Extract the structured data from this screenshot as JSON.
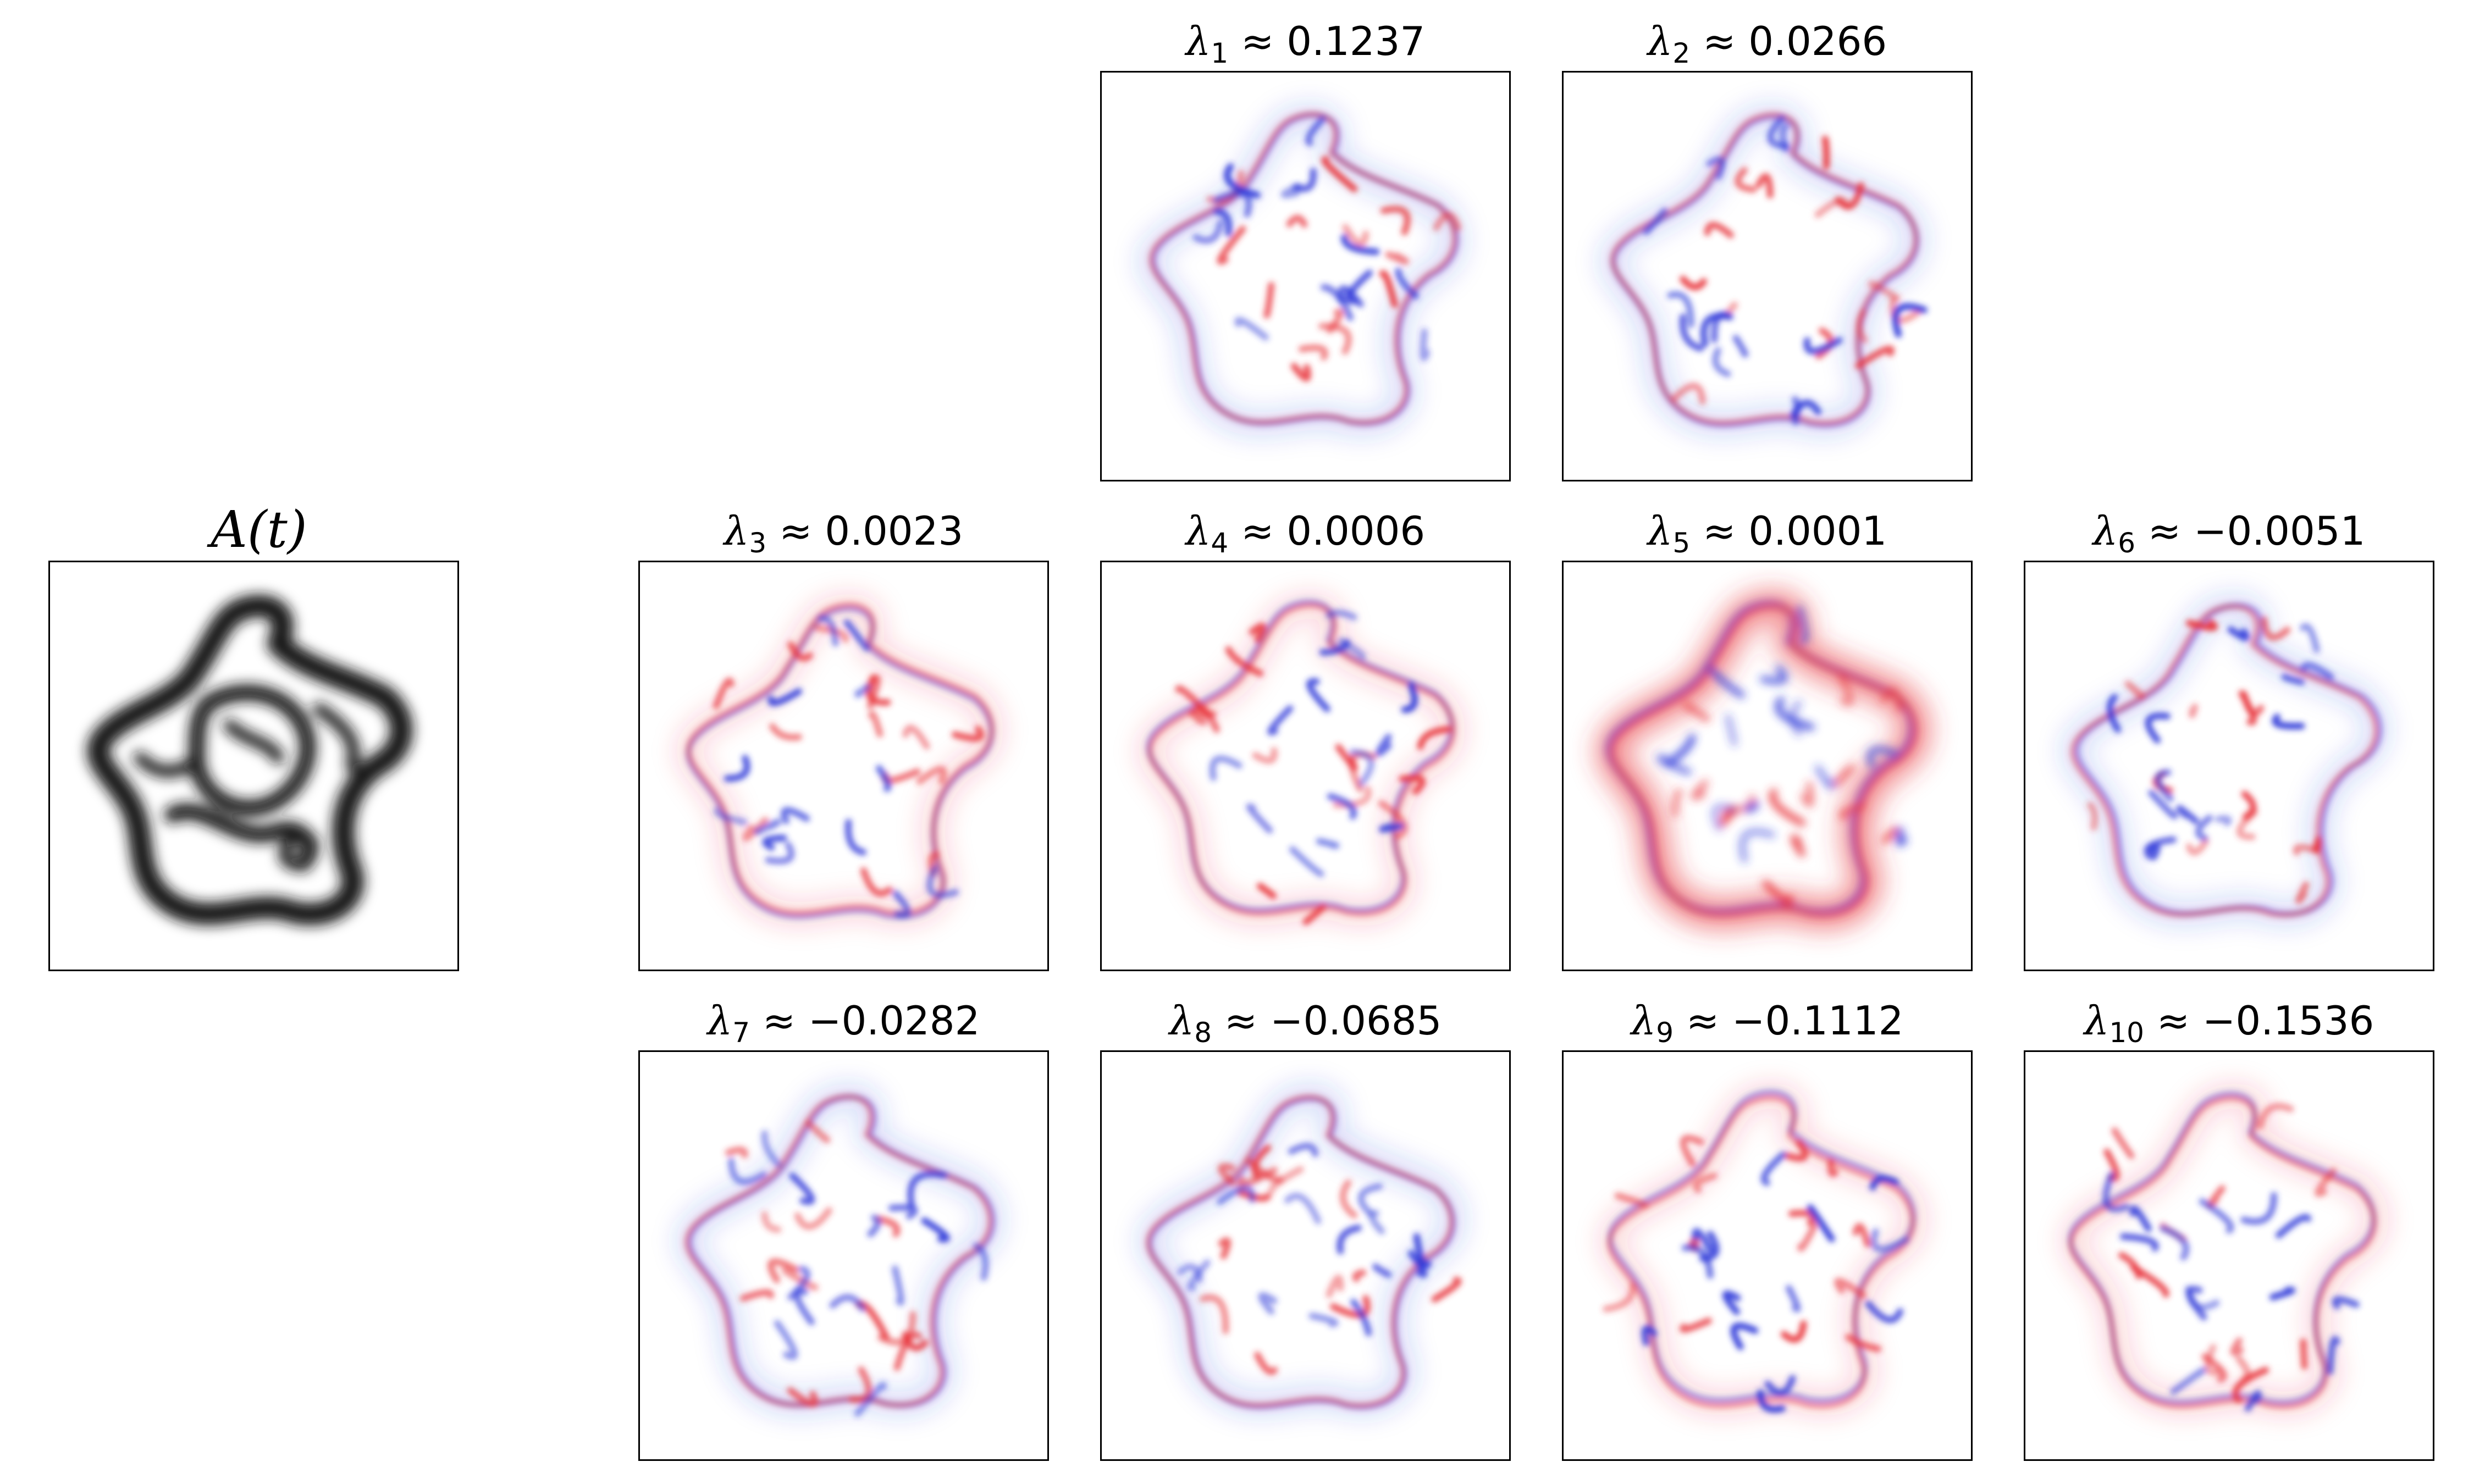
{
  "input_panel": {
    "title": "A(t)"
  },
  "modes": [
    {
      "idx": "1",
      "value": "0.1237",
      "row": 0,
      "col": 1
    },
    {
      "idx": "2",
      "value": "0.0266",
      "row": 0,
      "col": 2
    },
    {
      "idx": "3",
      "value": "0.0023",
      "row": 1,
      "col": 0
    },
    {
      "idx": "4",
      "value": "0.0006",
      "row": 1,
      "col": 1
    },
    {
      "idx": "5",
      "value": "0.0001",
      "row": 1,
      "col": 2
    },
    {
      "idx": "6",
      "value": "−0.0051",
      "row": 1,
      "col": 3
    },
    {
      "idx": "7",
      "value": "−0.0282",
      "row": 2,
      "col": 0
    },
    {
      "idx": "8",
      "value": "−0.0685",
      "row": 2,
      "col": 1
    },
    {
      "idx": "9",
      "value": "−0.1112",
      "row": 2,
      "col": 2
    },
    {
      "idx": "10",
      "value": "−0.1536",
      "row": 2,
      "col": 3
    }
  ],
  "symbols": {
    "lambda": "λ",
    "approx": "≈"
  },
  "colors": {
    "positive": "#e8333a",
    "negative": "#2a35d8",
    "field": "#141414",
    "frame": "#000000"
  },
  "colormaps": {
    "input": "gray_r",
    "modes": "bwr"
  }
}
